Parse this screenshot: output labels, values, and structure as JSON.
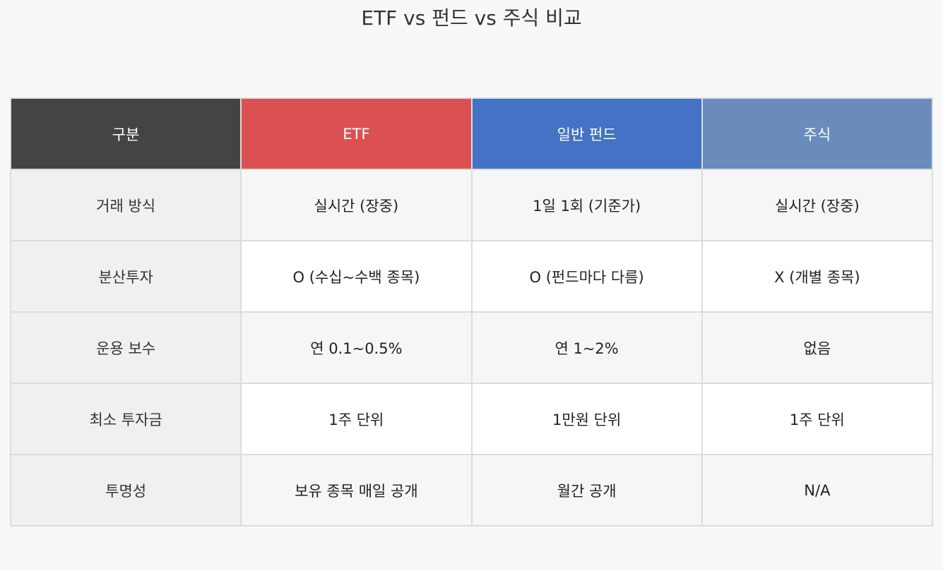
{
  "title": "ETF vs 펀드 vs 주식 비교",
  "colors": {
    "header_label": "#444444",
    "header_etf": "#db5052",
    "header_fund": "#4472c4",
    "header_stock": "#6a8cbc"
  },
  "chart_data": {
    "type": "table",
    "title": "ETF vs 펀드 vs 주식 비교",
    "columns": [
      "구분",
      "ETF",
      "일반 펀드",
      "주식"
    ],
    "rows": [
      [
        "거래 방식",
        "실시간 (장중)",
        "1일 1회 (기준가)",
        "실시간 (장중)"
      ],
      [
        "분산투자",
        "O (수십~수백 종목)",
        "O (펀드마다 다름)",
        "X (개별 종목)"
      ],
      [
        "운용 보수",
        "연 0.1~0.5%",
        "연 1~2%",
        "없음"
      ],
      [
        "최소 투자금",
        "1주 단위",
        "1만원 단위",
        "1주 단위"
      ],
      [
        "투명성",
        "보유 종목 매일 공개",
        "월간 공개",
        "N/A"
      ]
    ]
  }
}
